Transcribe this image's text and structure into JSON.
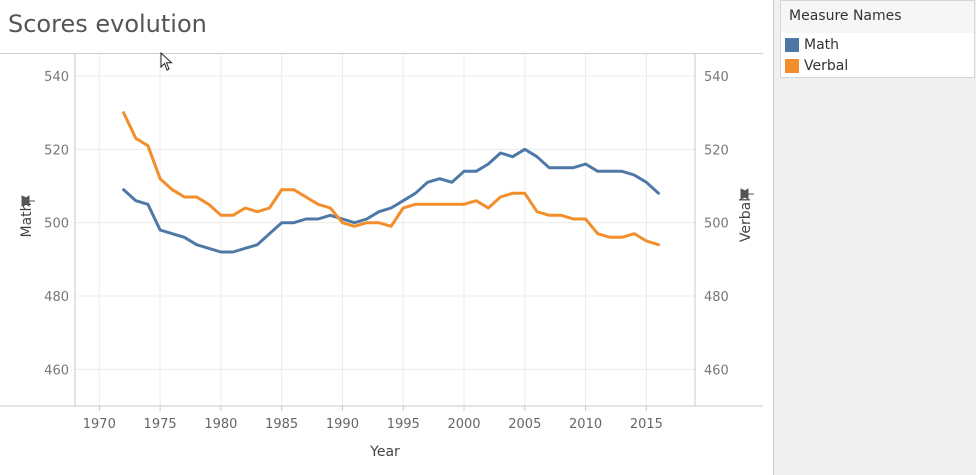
{
  "title": "Scores evolution",
  "legend": {
    "title": "Measure Names",
    "items": [
      {
        "label": "Math",
        "color": "#4e79a7"
      },
      {
        "label": "Verbal",
        "color": "#f28e2b"
      }
    ]
  },
  "chart_data": {
    "type": "line",
    "title": "Scores evolution",
    "xlabel": "Year",
    "ylabel_left": "Math",
    "ylabel_right": "Verbal",
    "xlim": [
      1968,
      2019
    ],
    "ylim": [
      450,
      546
    ],
    "x_ticks": [
      1970,
      1975,
      1980,
      1985,
      1990,
      1995,
      2000,
      2005,
      2010,
      2015
    ],
    "y_ticks": [
      460,
      480,
      500,
      520,
      540
    ],
    "grid": true,
    "legend_position": "top-right",
    "x": [
      1972,
      1973,
      1974,
      1975,
      1976,
      1977,
      1978,
      1979,
      1980,
      1981,
      1982,
      1983,
      1984,
      1985,
      1986,
      1987,
      1988,
      1989,
      1990,
      1991,
      1992,
      1993,
      1994,
      1995,
      1996,
      1997,
      1998,
      1999,
      2000,
      2001,
      2002,
      2003,
      2004,
      2005,
      2006,
      2007,
      2008,
      2009,
      2010,
      2011,
      2012,
      2013,
      2014,
      2015,
      2016
    ],
    "series": [
      {
        "name": "Math",
        "axis": "left",
        "color": "#4e79a7",
        "values": [
          509,
          506,
          505,
          498,
          497,
          496,
          494,
          493,
          492,
          492,
          493,
          494,
          497,
          500,
          500,
          501,
          501,
          502,
          501,
          500,
          501,
          503,
          504,
          506,
          508,
          511,
          512,
          511,
          514,
          514,
          516,
          519,
          518,
          520,
          518,
          515,
          515,
          515,
          516,
          514,
          514,
          514,
          513,
          511,
          508
        ]
      },
      {
        "name": "Verbal",
        "axis": "right",
        "color": "#f28e2b",
        "values": [
          530,
          523,
          521,
          512,
          509,
          507,
          507,
          505,
          502,
          502,
          504,
          503,
          504,
          509,
          509,
          507,
          505,
          504,
          500,
          499,
          500,
          500,
          499,
          504,
          505,
          505,
          505,
          505,
          505,
          506,
          504,
          507,
          508,
          508,
          503,
          502,
          502,
          501,
          501,
          497,
          496,
          496,
          497,
          495,
          494
        ]
      }
    ]
  }
}
